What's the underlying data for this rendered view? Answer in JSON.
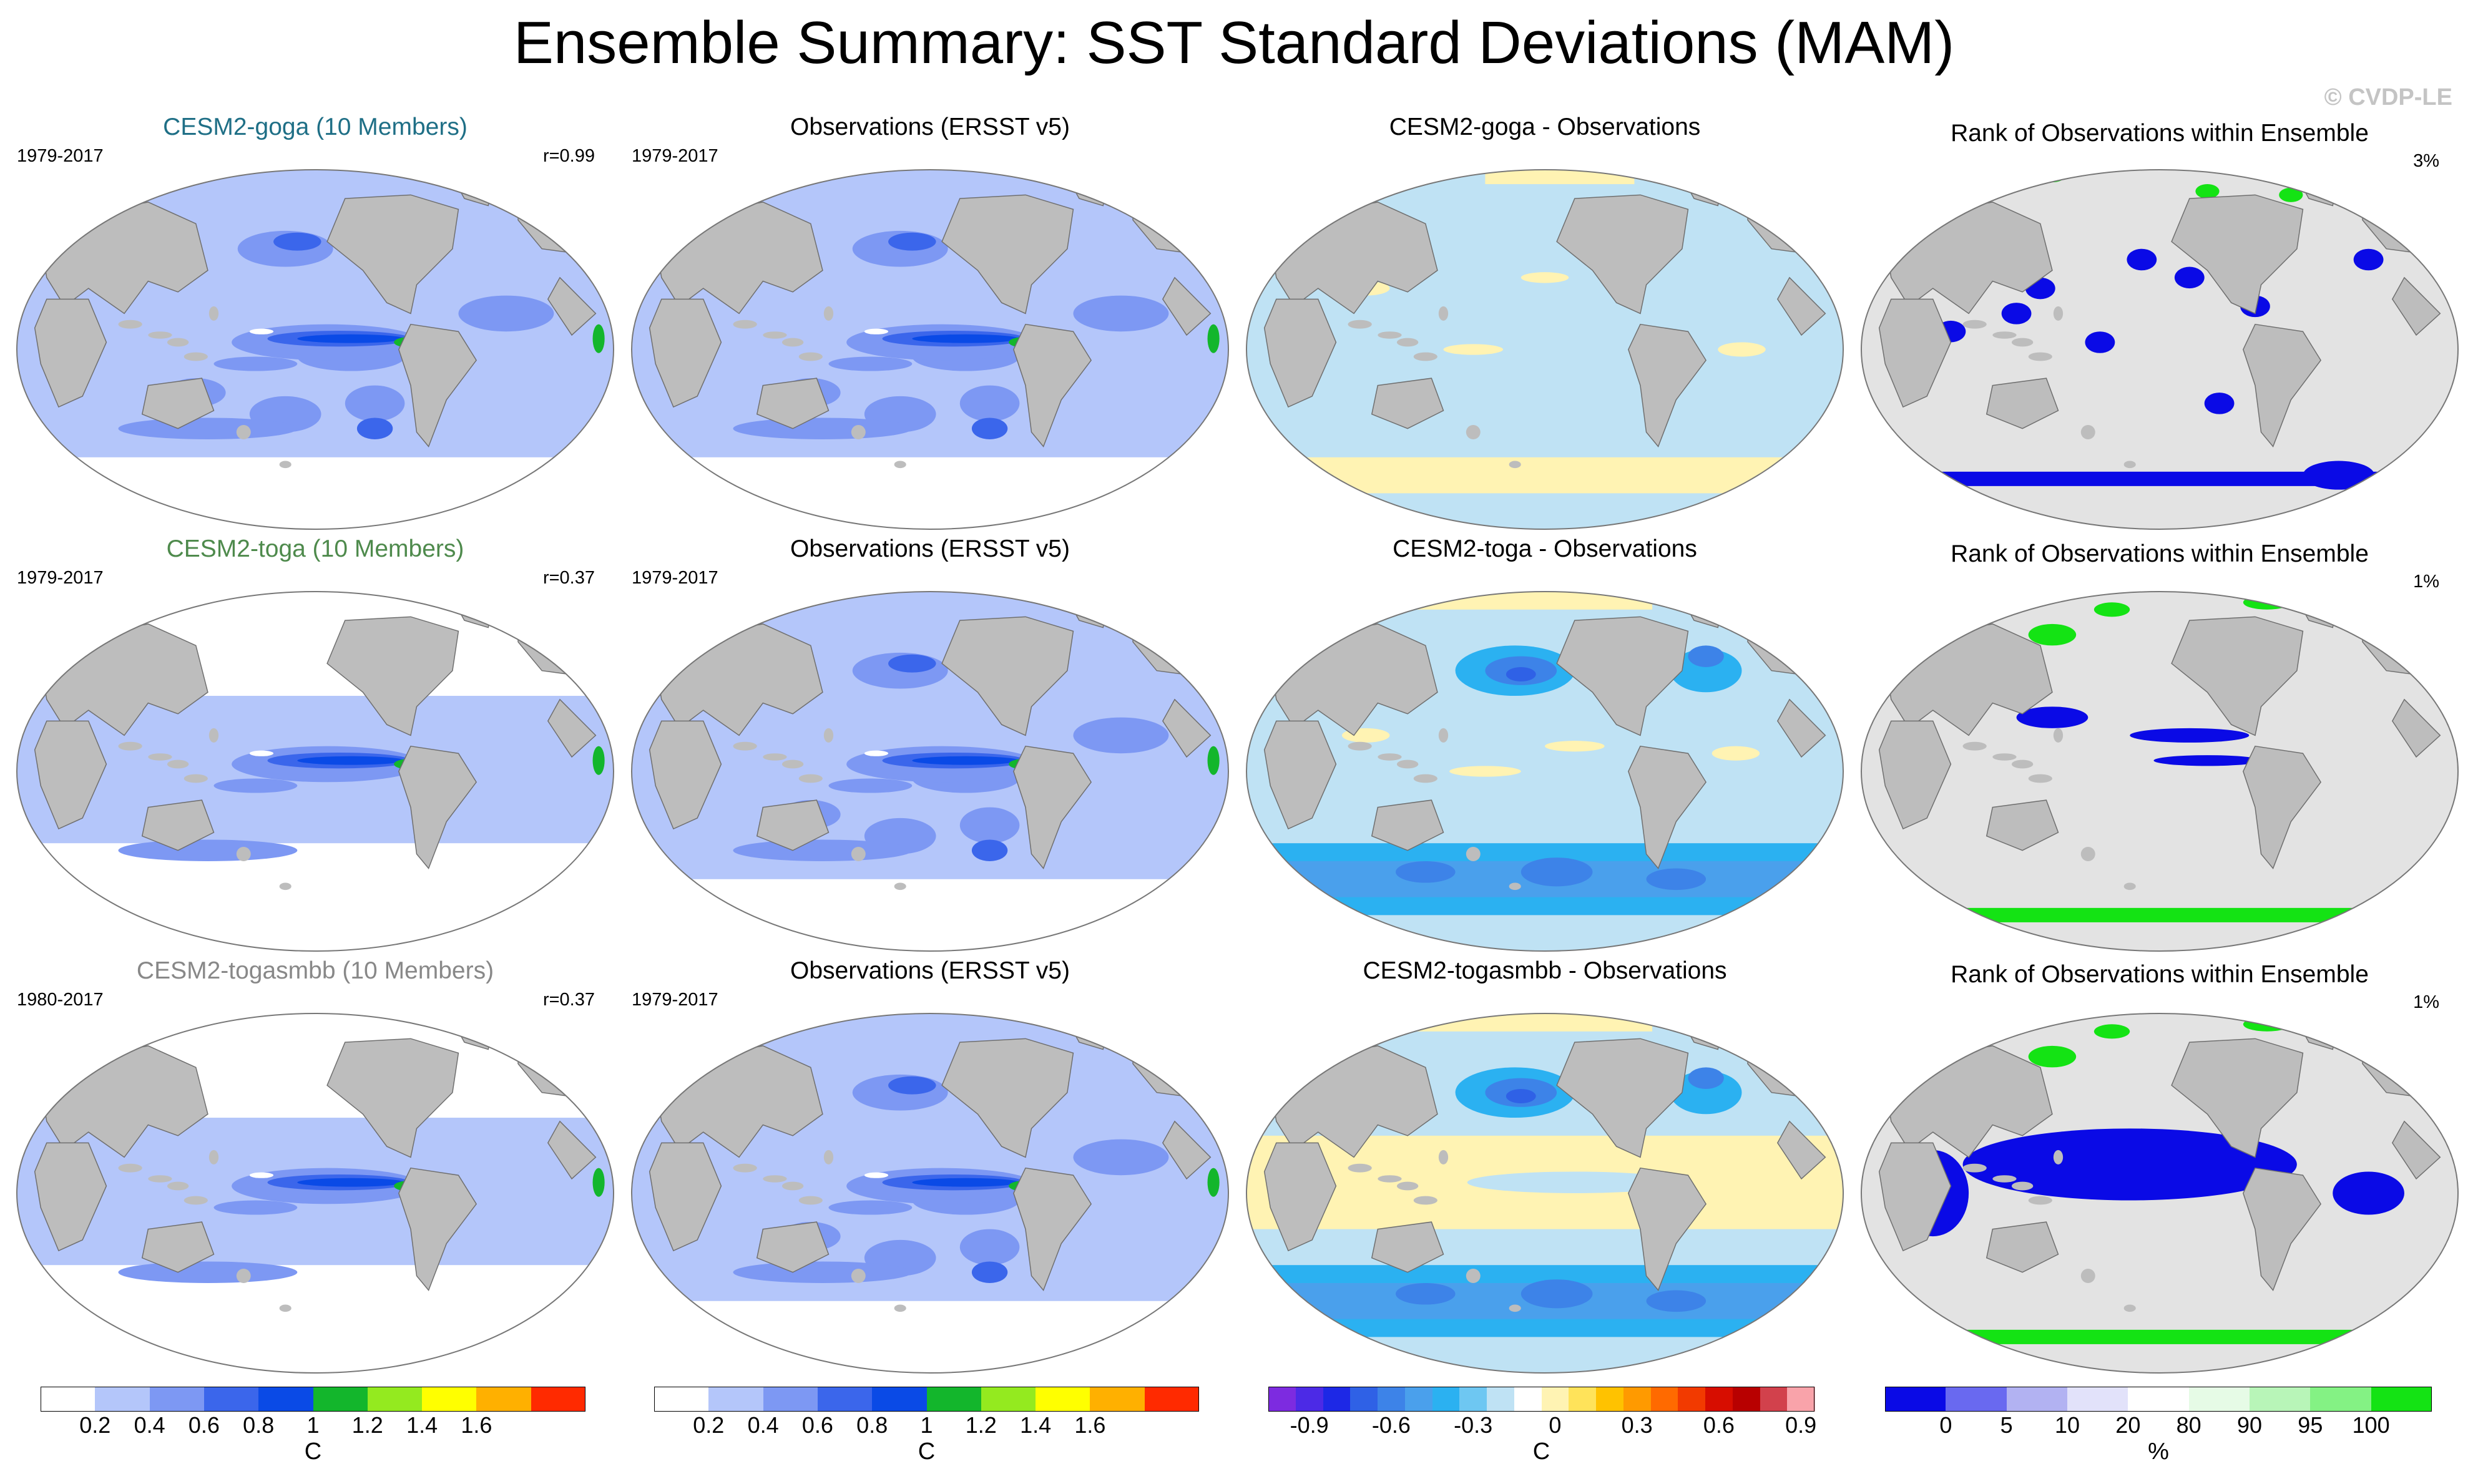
{
  "title": "Ensemble Summary: SST Standard Deviations (MAM)",
  "credit": "© CVDP-LE",
  "colors": {
    "land": "#bdbdbd",
    "sd_scale": [
      "#ffffff",
      "#b4c6fa",
      "#7d98f3",
      "#3b66eb",
      "#0a4ae6",
      "#13b62c",
      "#94ea1f",
      "#ffff00",
      "#ffb000",
      "#ff2a00"
    ],
    "diff_scale": [
      "#7d2be0",
      "#4c2ae6",
      "#1d28e6",
      "#2f61e6",
      "#3d83e8",
      "#4aa0ec",
      "#2bb1f1",
      "#6ec7f2",
      "#bfe2f4",
      "#ffffff",
      "#fff3b3",
      "#ffe35a",
      "#ffc200",
      "#ff9a00",
      "#ff6a00",
      "#f23a00",
      "#d70d00",
      "#b80000",
      "#d2414c",
      "#f9a3aa"
    ],
    "rank_scale": [
      "#0a0ae6",
      "#6969f0",
      "#b2b2f2",
      "#e2e2fa",
      "#ffffff",
      "#e6fbe6",
      "#b8f5b8",
      "#84f284",
      "#14e314"
    ]
  },
  "rows": [
    {
      "model": "CESM2-goga (10 Members)",
      "model_period": "1979-2017",
      "r": "r=0.99",
      "obs_title": "Observations (ERSST v5)",
      "obs_period": "1979-2017",
      "diff_title": "CESM2-goga - Observations",
      "rank_title": "Rank of Observations within Ensemble",
      "rank_pct": "3%"
    },
    {
      "model": "CESM2-toga (10 Members)",
      "model_period": "1979-2017",
      "r": "r=0.37",
      "obs_title": "Observations (ERSST v5)",
      "obs_period": "1979-2017",
      "diff_title": "CESM2-toga - Observations",
      "rank_title": "Rank of Observations within Ensemble",
      "rank_pct": "1%"
    },
    {
      "model": "CESM2-togasmbb (10 Members)",
      "model_period": "1980-2017",
      "r": "r=0.37",
      "obs_title": "Observations (ERSST v5)",
      "obs_period": "1979-2017",
      "diff_title": "CESM2-togasmbb - Observations",
      "rank_title": "Rank of Observations within Ensemble",
      "rank_pct": "1%"
    }
  ],
  "colorbars": {
    "sd_ticks": [
      "0.2",
      "0.4",
      "0.6",
      "0.8",
      "1",
      "1.2",
      "1.4",
      "1.6"
    ],
    "sd_unit": "C",
    "diff_ticks": [
      "-0.9",
      "-0.6",
      "-0.3",
      "0",
      "0.3",
      "0.6",
      "0.9"
    ],
    "diff_unit": "C",
    "rank_ticks": [
      "0",
      "5",
      "10",
      "20",
      "80",
      "90",
      "95",
      "100"
    ],
    "rank_unit": "%"
  }
}
